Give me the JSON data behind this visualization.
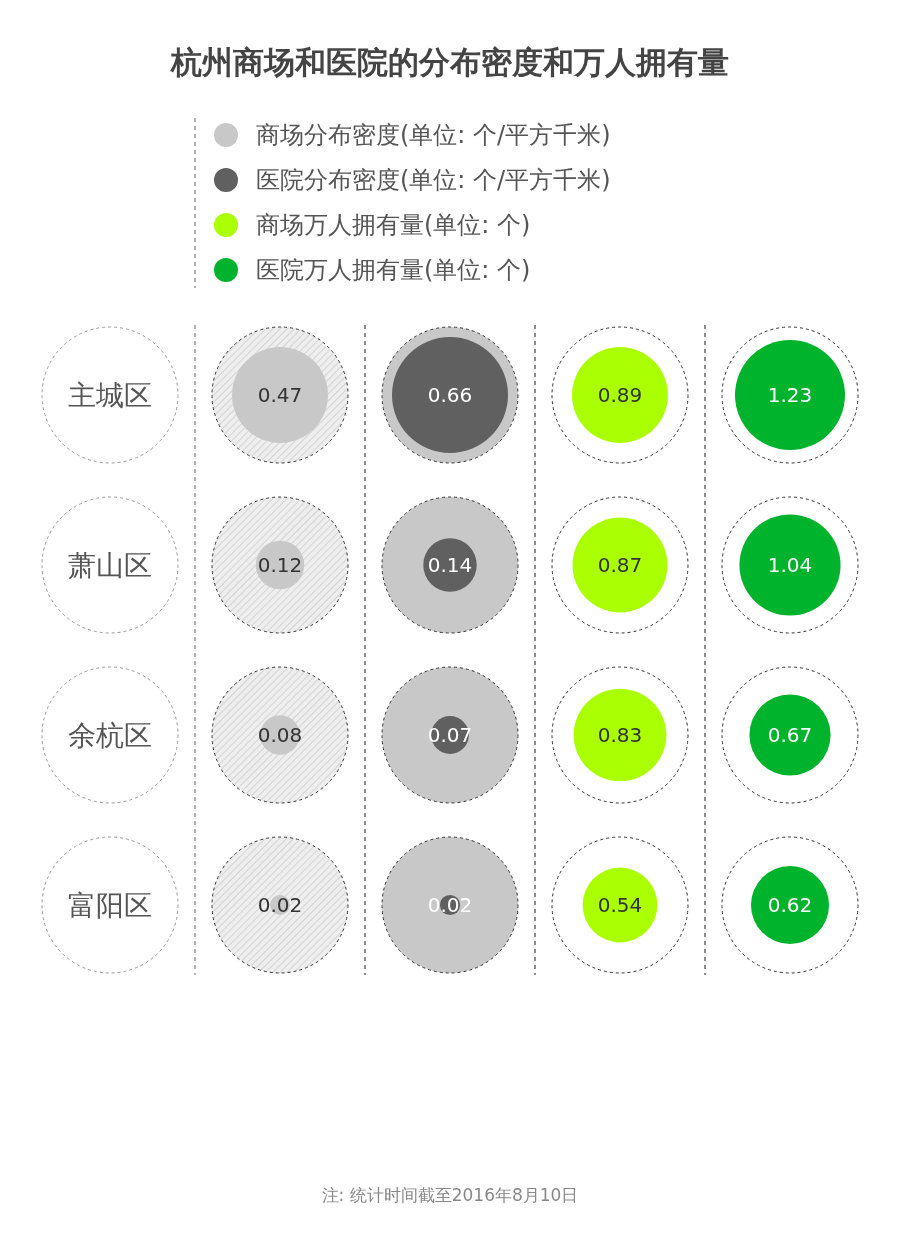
{
  "chart_data": {
    "type": "other",
    "title": "杭州商场和医院的分布密度和万人拥有量",
    "categories": [
      "主城区",
      "萧山区",
      "余杭区",
      "富阳区"
    ],
    "series": [
      {
        "name": "商场分布密度(单位: 个/平方千米)",
        "color": "#c8c8c8",
        "values": [
          0.47,
          0.12,
          0.08,
          0.02
        ]
      },
      {
        "name": "医院分布密度(单位: 个/平方千米)",
        "color": "#606060",
        "values": [
          0.66,
          0.14,
          0.07,
          0.02
        ]
      },
      {
        "name": "商场万人拥有量(单位: 个)",
        "color": "#aaff00",
        "values": [
          0.89,
          0.87,
          0.83,
          0.54
        ]
      },
      {
        "name": "医院万人拥有量(单位: 个)",
        "color": "#00b32c",
        "values": [
          1.23,
          1.04,
          0.67,
          0.62
        ]
      }
    ],
    "legend": "top",
    "data_labels": true,
    "annotations": [
      "注: 统计时间截至2016年8月10日"
    ]
  }
}
